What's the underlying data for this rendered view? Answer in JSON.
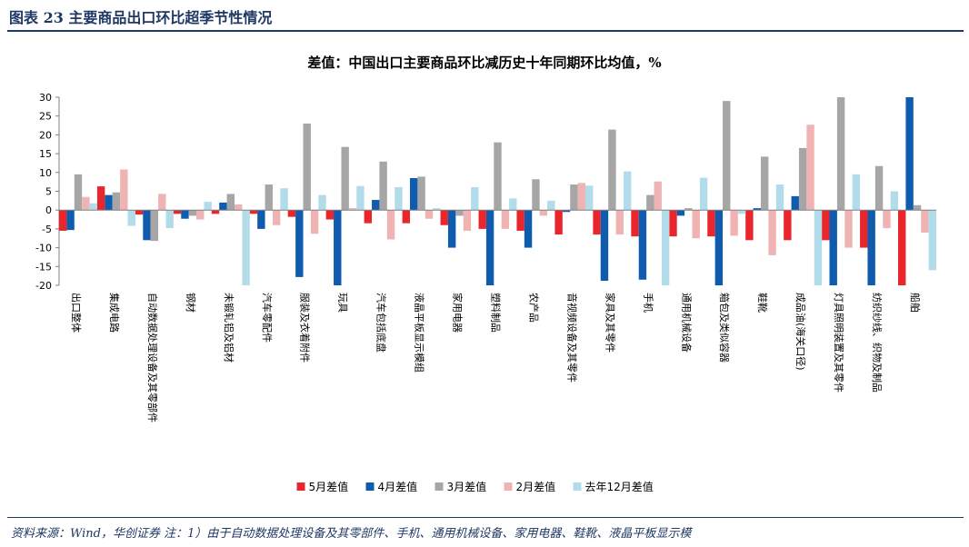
{
  "header": {
    "title": "图表 23   主要商品出口环比超季节性情况"
  },
  "chart_data": {
    "type": "bar",
    "title": "差值：中国出口主要商品环比减历史十年同期环比均值，%",
    "ylim": [
      -20,
      30
    ],
    "yticks": [
      -20,
      -15,
      -10,
      -5,
      0,
      5,
      10,
      15,
      20,
      25,
      30
    ],
    "grid": false,
    "legend_position": "bottom",
    "categories": [
      "出口整体",
      "集成电路",
      "自动数据处理设备及其零部件",
      "钢材",
      "未锻轧铝及铝材",
      "汽车零配件",
      "服装及衣着附件",
      "玩具",
      "汽车包括底盘",
      "液晶平板显示模组",
      "家用电器",
      "塑料制品",
      "农产品",
      "音视频设备及其零件",
      "家具及其零件",
      "手机",
      "通用机械设备",
      "箱包及类似容器",
      "鞋靴",
      "成品油(海关口径)",
      "灯具照明装置及其零件",
      "纺织纱线、织物及制品",
      "船舶"
    ],
    "series": [
      {
        "name": "5月差值",
        "color": "#e8262c",
        "values": [
          -5.5,
          6.3,
          -1.2,
          -1,
          -1,
          -1,
          -1.8,
          -2.5,
          -3.5,
          -3.5,
          -4,
          -5,
          -5.5,
          -6.5,
          -6.5,
          -7,
          -7,
          -7,
          -8,
          -8,
          -8,
          -10,
          -20
        ]
      },
      {
        "name": "4月差值",
        "color": "#0f5cae",
        "values": [
          -5.3,
          4,
          -8,
          -2.3,
          2,
          -5,
          -17.8,
          -20,
          2.7,
          8.5,
          -10,
          -20,
          -10,
          -0.5,
          -18.8,
          -18.5,
          -1.5,
          -20,
          0.5,
          3.7,
          -20,
          -20,
          30
        ]
      },
      {
        "name": "3月差值",
        "color": "#a6a6a6",
        "values": [
          9.5,
          4.7,
          -8.2,
          -1.5,
          4.3,
          6.8,
          23,
          16.8,
          12.9,
          8.9,
          -1.5,
          18,
          8.2,
          6.8,
          21.4,
          4,
          0.5,
          29,
          14.2,
          16.5,
          30,
          11.7,
          1.3
        ]
      },
      {
        "name": "2月差值",
        "color": "#f0b3b3",
        "values": [
          3.5,
          10.8,
          4.3,
          -2.5,
          1.5,
          -4,
          -6.3,
          0.5,
          -7.8,
          -2.3,
          -5.5,
          -5,
          -1.5,
          7.2,
          -6.5,
          7.6,
          -7.5,
          -6.8,
          -12,
          22.7,
          -10,
          -4.8,
          -6
        ]
      },
      {
        "name": "去年12月差值",
        "color": "#b3dcea",
        "values": [
          1.8,
          -4.2,
          -4.8,
          2.2,
          -20,
          5.8,
          4,
          6.4,
          6.1,
          0.5,
          6.1,
          3.1,
          2.5,
          6.5,
          10.3,
          -20,
          8.6,
          -1,
          6.8,
          -20,
          9.5,
          5,
          -16
        ]
      }
    ]
  },
  "footer": {
    "source": "资料来源：Wind，华创证券   注：1）由于自动数据处理设备及其零部件、手机、通用机械设备、家用电器、鞋靴、液晶平板显示模"
  }
}
